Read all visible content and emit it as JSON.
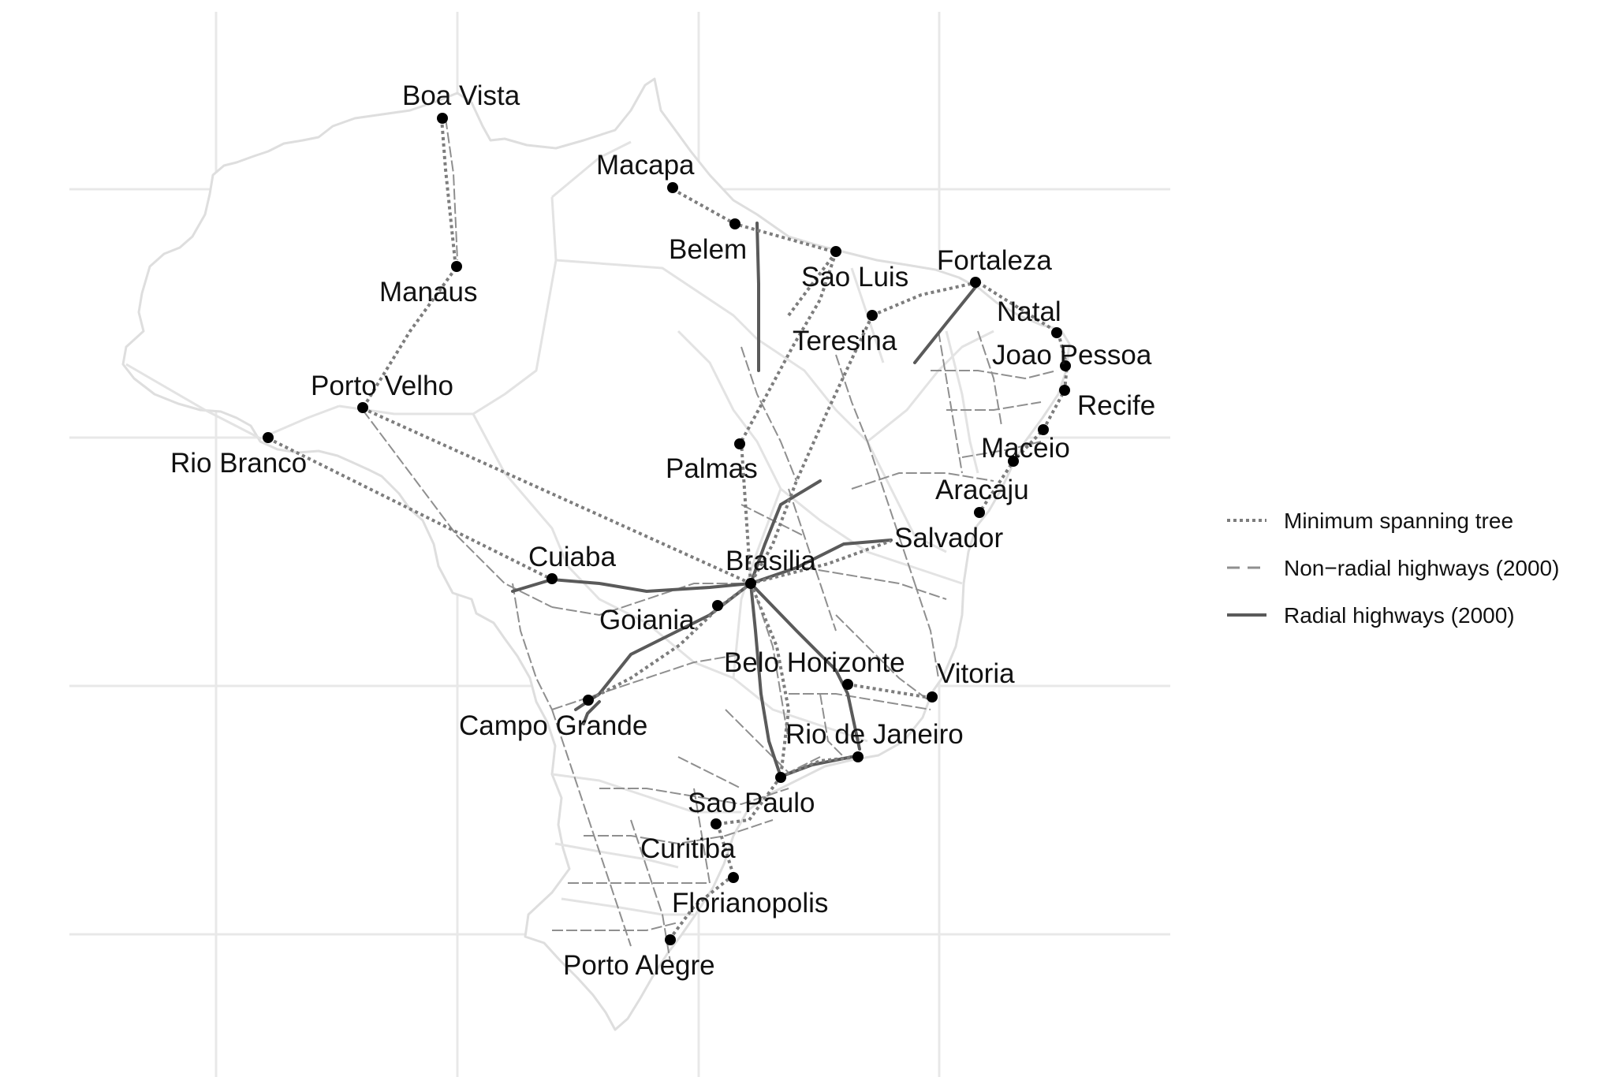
{
  "legend": {
    "items": [
      {
        "key": "mst",
        "label": "Minimum spanning tree",
        "style": "dotted",
        "color": "#7d7d7d"
      },
      {
        "key": "nonradial",
        "label": "Non−radial highways (2000)",
        "style": "dashed",
        "color": "#8f8f8f"
      },
      {
        "key": "radial",
        "label": "Radial highways (2000)",
        "style": "solid",
        "color": "#5a5a5a"
      }
    ]
  },
  "cities": [
    {
      "name": "Boa Vista"
    },
    {
      "name": "Macapa"
    },
    {
      "name": "Manaus"
    },
    {
      "name": "Belem"
    },
    {
      "name": "Sao Luis"
    },
    {
      "name": "Fortaleza"
    },
    {
      "name": "Teresina"
    },
    {
      "name": "Natal"
    },
    {
      "name": "Joao Pessoa"
    },
    {
      "name": "Recife"
    },
    {
      "name": "Porto Velho"
    },
    {
      "name": "Rio Branco"
    },
    {
      "name": "Palmas"
    },
    {
      "name": "Maceio"
    },
    {
      "name": "Aracaju"
    },
    {
      "name": "Salvador"
    },
    {
      "name": "Cuiaba"
    },
    {
      "name": "Brasilia"
    },
    {
      "name": "Goiania"
    },
    {
      "name": "Belo Horizonte"
    },
    {
      "name": "Vitoria"
    },
    {
      "name": "Campo Grande"
    },
    {
      "name": "Rio de Janeiro"
    },
    {
      "name": "Sao Paulo"
    },
    {
      "name": "Curitiba"
    },
    {
      "name": "Florianopolis"
    },
    {
      "name": "Porto Alegre"
    }
  ]
}
